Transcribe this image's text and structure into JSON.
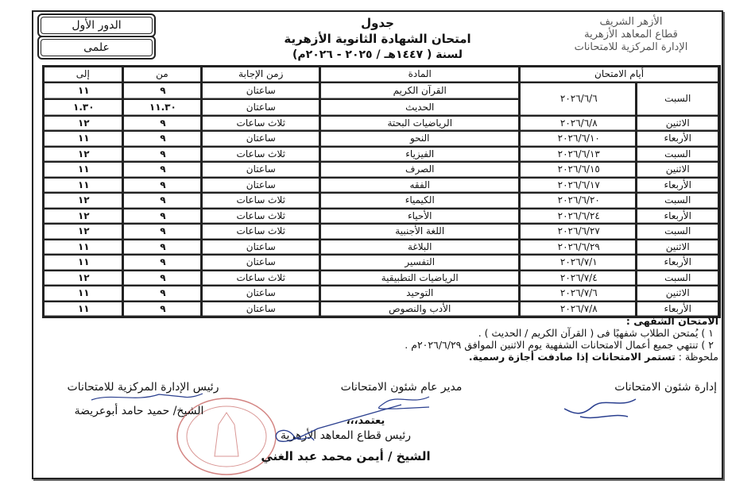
{
  "header": {
    "round": "الدور الأول",
    "division": "علمى",
    "title_line1": "جدول",
    "title_line2": "امتحان الشهادة الثانوية الأزهرية",
    "title_line3": "لسنة ( ١٤٤٧هـ / ٢٠٢٥ - ٢٠٢٦م)",
    "logo_lines": [
      "الأزهر الشريف",
      "قطاع المعاهد الأزهرية",
      "الإدارة المركزية للامتحانات"
    ]
  },
  "table": {
    "columns": [
      "أيام الامتحان",
      "المادة",
      "زمن الإجابة",
      "من",
      "إلى"
    ],
    "first_day": {
      "day": "السبت",
      "date": "٢٠٢٦/٦/٦",
      "sessions": [
        {
          "subject": "القرآن الكريم",
          "duration": "ساعتان",
          "from": "٩",
          "to": "١١"
        },
        {
          "subject": "الحديث",
          "duration": "ساعتان",
          "from": "١١.٣٠",
          "to": "١.٣٠"
        }
      ]
    },
    "rows": [
      {
        "day": "الاثنين",
        "date": "٢٠٢٦/٦/٨",
        "subject": "الرياضيات البحتة",
        "duration": "ثلاث ساعات",
        "from": "٩",
        "to": "١٢"
      },
      {
        "day": "الأربعاء",
        "date": "٢٠٢٦/٦/١٠",
        "subject": "النحو",
        "duration": "ساعتان",
        "from": "٩",
        "to": "١١"
      },
      {
        "day": "السبت",
        "date": "٢٠٢٦/٦/١٣",
        "subject": "الفيزياء",
        "duration": "ثلاث ساعات",
        "from": "٩",
        "to": "١٢"
      },
      {
        "day": "الاثنين",
        "date": "٢٠٢٦/٦/١٥",
        "subject": "الصرف",
        "duration": "ساعتان",
        "from": "٩",
        "to": "١١"
      },
      {
        "day": "الأربعاء",
        "date": "٢٠٢٦/٦/١٧",
        "subject": "الفقه",
        "duration": "ساعتان",
        "from": "٩",
        "to": "١١"
      },
      {
        "day": "السبت",
        "date": "٢٠٢٦/٦/٢٠",
        "subject": "الكيمياء",
        "duration": "ثلاث ساعات",
        "from": "٩",
        "to": "١٢"
      },
      {
        "day": "الأربعاء",
        "date": "٢٠٢٦/٦/٢٤",
        "subject": "الأحياء",
        "duration": "ثلاث ساعات",
        "from": "٩",
        "to": "١٢"
      },
      {
        "day": "السبت",
        "date": "٢٠٢٦/٦/٢٧",
        "subject": "اللغة الأجنبية",
        "duration": "ثلاث ساعات",
        "from": "٩",
        "to": "١٢"
      },
      {
        "day": "الاثنين",
        "date": "٢٠٢٦/٦/٢٩",
        "subject": "البلاغة",
        "duration": "ساعتان",
        "from": "٩",
        "to": "١١"
      },
      {
        "day": "الأربعاء",
        "date": "٢٠٢٦/٧/١",
        "subject": "التفسير",
        "duration": "ساعتان",
        "from": "٩",
        "to": "١١"
      },
      {
        "day": "السبت",
        "date": "٢٠٢٦/٧/٤",
        "subject": "الرياضيات التطبيقية",
        "duration": "ثلاث ساعات",
        "from": "٩",
        "to": "١٢"
      },
      {
        "day": "الاثنين",
        "date": "٢٠٢٦/٧/٦",
        "subject": "التوحيد",
        "duration": "ساعتان",
        "from": "٩",
        "to": "١١"
      },
      {
        "day": "الأربعاء",
        "date": "٢٠٢٦/٧/٨",
        "subject": "الأدب والنصوص",
        "duration": "ساعتان",
        "from": "٩",
        "to": "١١"
      }
    ]
  },
  "notes": {
    "heading": "الامتحان الشفهى :",
    "item1": "١ )   يُمتحن الطلاب شفهيًا فى ( القرآن الكريم  /  الحديث ) .",
    "item2": "٢ )   تنتهي جميع أعمال الامتحانات الشفهية يوم الاثنين  الموافق  ٢٠٢٦/٦/٢٩م .",
    "remark_label": "ملحوظة :",
    "remark_text": "تستمر الامتحانات إذا صادفت أجازة رسمية."
  },
  "signatures": {
    "exam_affairs": "إدارة شئون الامتحانات",
    "general_manager": "مدير عام شئون الامتحانات",
    "central_head": "رئيس الإدارة المركزية للامتحانات",
    "central_head_name": "الشيخ/ حميد حامد أبوعريضة",
    "approved": "يعتمد،،،",
    "sector_head": "رئيس قطاع المعاهد الأزهرية",
    "sector_head_name": "الشيخ / أيمن محمد عبد الغني"
  },
  "colors": {
    "ink": "#111111",
    "stamp": "#c0504d",
    "signature": "#2a3f8f"
  }
}
